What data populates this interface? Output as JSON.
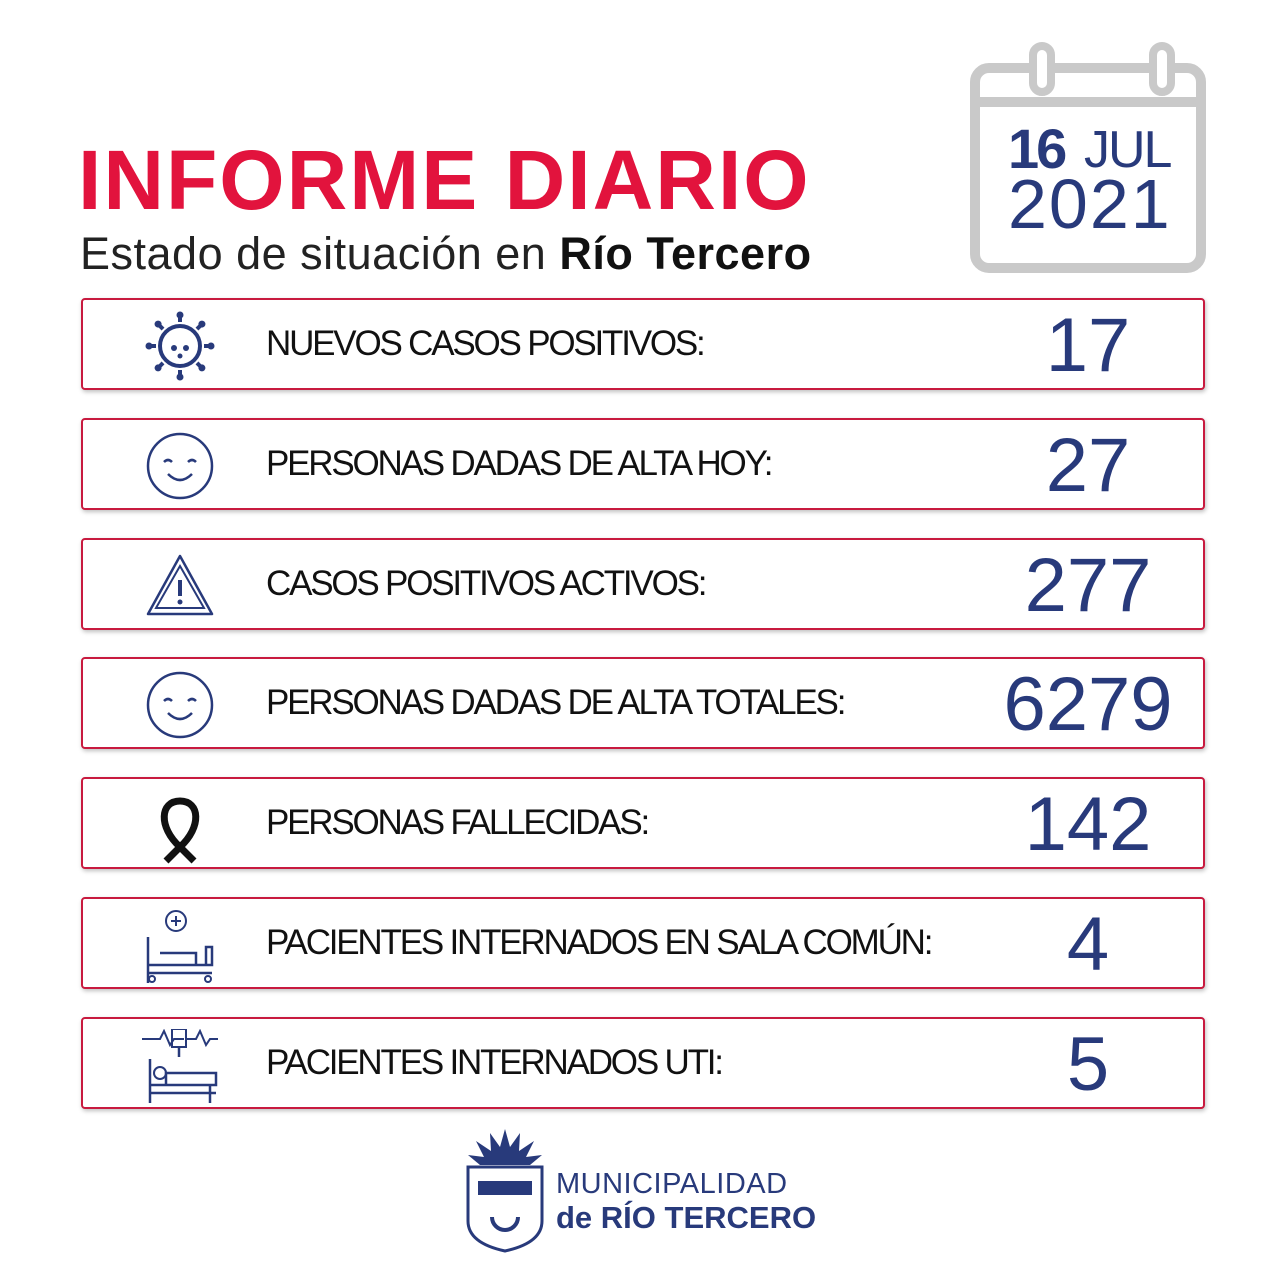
{
  "header": {
    "title": "INFORME DIARIO",
    "subtitle_prefix": "Estado de situación en",
    "subtitle_place": "Río Tercero"
  },
  "date": {
    "day": "16",
    "month": "JUL",
    "year": "2021"
  },
  "rows": [
    {
      "label": "NUEVOS CASOS POSITIVOS:",
      "value": 17
    },
    {
      "label": "PERSONAS DADAS DE ALTA HOY:",
      "value": 27
    },
    {
      "label": "CASOS POSITIVOS ACTIVOS:",
      "value": 277
    },
    {
      "label": "PERSONAS DADAS DE ALTA TOTALES:",
      "value": 6279
    },
    {
      "label": "PERSONAS FALLECIDAS:",
      "value": 142
    },
    {
      "label": "PACIENTES INTERNADOS EN SALA COMÚN:",
      "value": 4
    },
    {
      "label": "PACIENTES INTERNADOS UTI:",
      "value": 5
    }
  ],
  "footer": {
    "line1": "MUNICIPALIDAD",
    "line2": "de RÍO TERCERO"
  }
}
